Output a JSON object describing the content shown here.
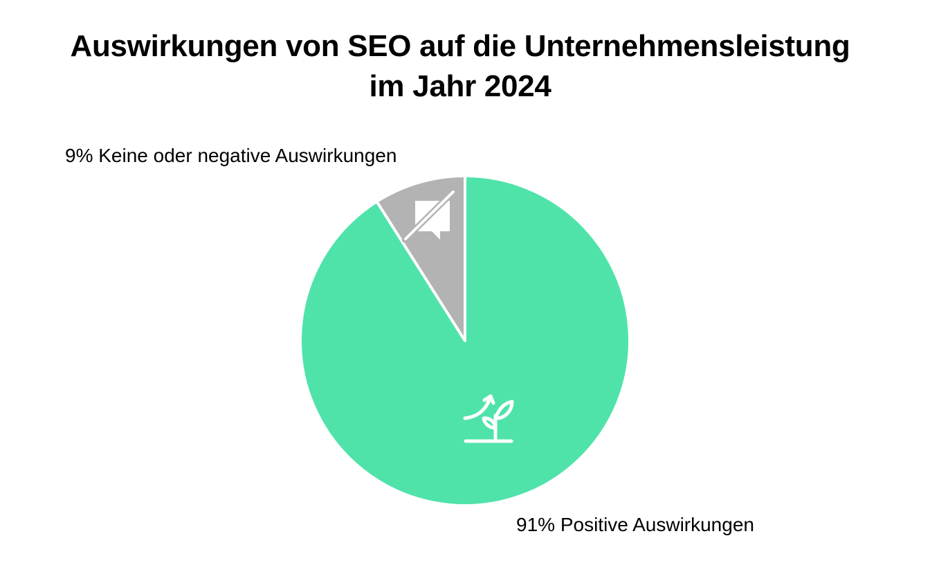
{
  "chart_data": {
    "type": "pie",
    "title": [
      "Auswirkungen von SEO auf die Unternehmensleistung",
      "im Jahr 2024"
    ],
    "slices": [
      {
        "label": "91% Positive Auswirkungen",
        "value": 91,
        "color": "#4fe3aa",
        "icon": "growing-plant-icon"
      },
      {
        "label": "9% Keine oder negative Auswirkungen",
        "value": 9,
        "color": "#b3b3b3",
        "icon": "muted-message-icon"
      }
    ],
    "legend": "none",
    "start_angle": "12 o'clock, negative slice counter-clockwise"
  }
}
